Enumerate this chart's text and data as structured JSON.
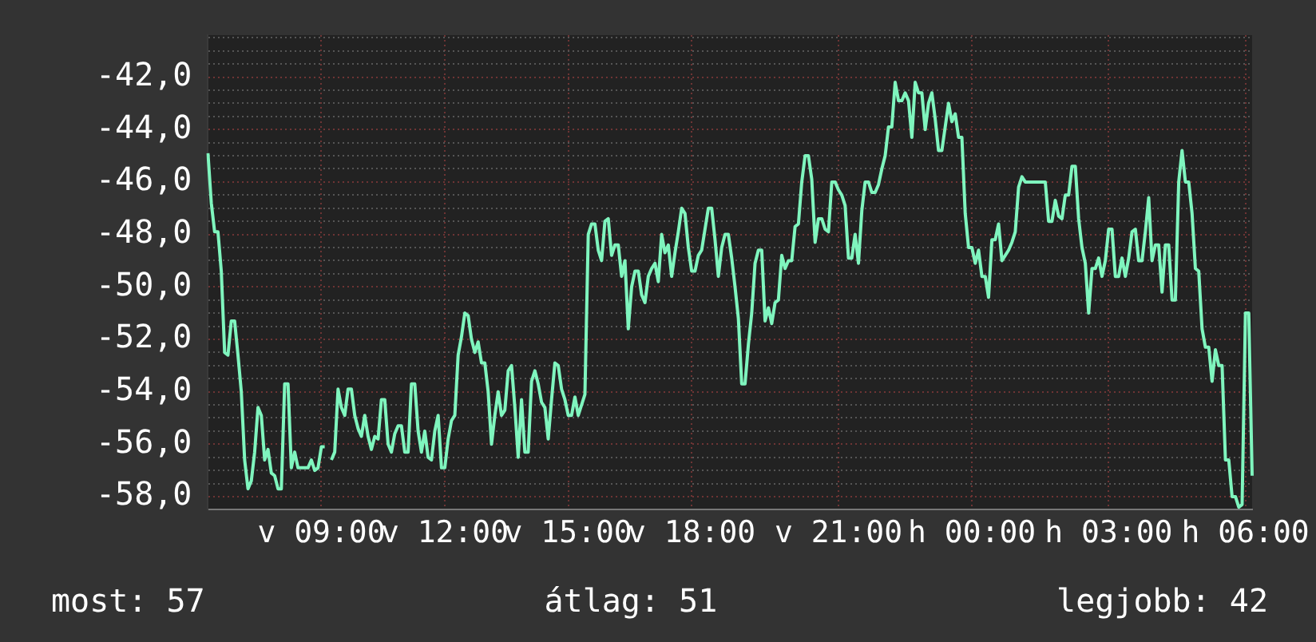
{
  "chart_data": {
    "type": "line",
    "color": "#7ff5be",
    "grid": true,
    "legend": false,
    "marker": "none",
    "ylim": [
      -58.5,
      -40.4
    ],
    "yticks": [
      {
        "value": -58.5,
        "label": null
      },
      {
        "value": -58,
        "label": "-58,0"
      },
      {
        "value": -57.5,
        "label": null
      },
      {
        "value": -57,
        "label": null
      },
      {
        "value": -56.5,
        "label": null
      },
      {
        "value": -56,
        "label": "-56,0"
      },
      {
        "value": -55.5,
        "label": null
      },
      {
        "value": -55,
        "label": null
      },
      {
        "value": -54.5,
        "label": null
      },
      {
        "value": -54,
        "label": "-54,0"
      },
      {
        "value": -53.5,
        "label": null
      },
      {
        "value": -53,
        "label": null
      },
      {
        "value": -52.5,
        "label": null
      },
      {
        "value": -52,
        "label": "-52,0"
      },
      {
        "value": -51.5,
        "label": null
      },
      {
        "value": -51,
        "label": null
      },
      {
        "value": -50.5,
        "label": null
      },
      {
        "value": -50,
        "label": "-50,0"
      },
      {
        "value": -49.5,
        "label": null
      },
      {
        "value": -49,
        "label": null
      },
      {
        "value": -48.5,
        "label": null
      },
      {
        "value": -48,
        "label": "-48,0"
      },
      {
        "value": -47.5,
        "label": null
      },
      {
        "value": -47,
        "label": null
      },
      {
        "value": -46.5,
        "label": null
      },
      {
        "value": -46,
        "label": "-46,0"
      },
      {
        "value": -45.5,
        "label": null
      },
      {
        "value": -45,
        "label": null
      },
      {
        "value": -44.5,
        "label": null
      },
      {
        "value": -44,
        "label": "-44,0"
      },
      {
        "value": -43.5,
        "label": null
      },
      {
        "value": -43,
        "label": null
      },
      {
        "value": -42.5,
        "label": null
      },
      {
        "value": -42,
        "label": "-42,0"
      },
      {
        "value": -41.5,
        "label": null
      },
      {
        "value": -41,
        "label": null
      },
      {
        "value": -40.5,
        "label": null
      }
    ],
    "categories": [
      null,
      null,
      null,
      null,
      null,
      null,
      null,
      null,
      null,
      null,
      null,
      null,
      null,
      null,
      null,
      null,
      null,
      null,
      null,
      null,
      null,
      null,
      null,
      null,
      null,
      null,
      null,
      null,
      null,
      null,
      null,
      null,
      null,
      null,
      "v 09:00",
      null,
      null,
      null,
      null,
      null,
      null,
      null,
      null,
      null,
      null,
      null,
      null,
      null,
      null,
      null,
      null,
      null,
      null,
      null,
      null,
      null,
      null,
      null,
      null,
      null,
      null,
      null,
      null,
      null,
      null,
      null,
      null,
      null,
      null,
      null,
      null,
      "v 12:00",
      null,
      null,
      null,
      null,
      null,
      null,
      null,
      null,
      null,
      null,
      null,
      null,
      null,
      null,
      null,
      null,
      null,
      null,
      null,
      null,
      null,
      null,
      null,
      null,
      null,
      null,
      null,
      null,
      null,
      null,
      null,
      null,
      null,
      null,
      null,
      null,
      "v 15:00",
      null,
      null,
      null,
      null,
      null,
      null,
      null,
      null,
      null,
      null,
      null,
      null,
      null,
      null,
      null,
      null,
      null,
      null,
      null,
      null,
      null,
      null,
      null,
      null,
      null,
      null,
      null,
      null,
      null,
      null,
      null,
      null,
      null,
      null,
      null,
      null,
      "v 18:00",
      null,
      null,
      null,
      null,
      null,
      null,
      null,
      null,
      null,
      null,
      null,
      null,
      null,
      null,
      null,
      null,
      null,
      null,
      null,
      null,
      null,
      null,
      null,
      null,
      null,
      null,
      null,
      null,
      null,
      null,
      null,
      null,
      null,
      null,
      null,
      null,
      null,
      null,
      null,
      null,
      null,
      null,
      null,
      "v 21:00",
      null,
      null,
      null,
      null,
      null,
      null,
      null,
      null,
      null,
      null,
      null,
      null,
      null,
      null,
      null,
      null,
      null,
      null,
      null,
      null,
      null,
      null,
      null,
      null,
      null,
      null,
      null,
      null,
      null,
      null,
      null,
      null,
      null,
      null,
      null,
      null,
      null,
      null,
      null,
      "h 00:00",
      null,
      null,
      null,
      null,
      null,
      null,
      null,
      null,
      null,
      null,
      null,
      null,
      null,
      null,
      null,
      null,
      null,
      null,
      null,
      null,
      null,
      null,
      null,
      null,
      null,
      null,
      null,
      null,
      null,
      null,
      null,
      null,
      null,
      null,
      null,
      null,
      null,
      null,
      null,
      null,
      "h 03:00",
      null,
      null,
      null,
      null,
      null,
      null,
      null,
      null,
      null,
      null,
      null,
      null,
      null,
      null,
      null,
      null,
      null,
      null,
      null,
      null,
      null,
      null,
      null,
      null,
      null,
      null,
      null,
      null,
      null,
      null,
      null,
      null,
      null,
      null,
      null,
      null,
      null,
      null,
      null,
      null,
      "h 06:00",
      null,
      null
    ],
    "values": [
      -44.9,
      -46.8,
      -47.9,
      -47.9,
      -49.4,
      -52.5,
      -52.6,
      -51.3,
      -51.3,
      -52.6,
      -54.0,
      -56.6,
      -57.7,
      -57.4,
      -56.3,
      -54.6,
      -54.9,
      -56.6,
      -56.2,
      -57.1,
      -57.2,
      -57.7,
      -57.7,
      -53.7,
      -53.7,
      -56.9,
      -56.3,
      -56.9,
      -56.9,
      -56.9,
      -56.9,
      -56.6,
      -57.0,
      -56.9,
      -56.1,
      -56.1,
      null,
      -56.6,
      -56.3,
      -53.9,
      -54.6,
      -54.9,
      -53.9,
      -53.9,
      -54.9,
      -55.4,
      -55.7,
      -54.9,
      -55.7,
      -56.2,
      -55.7,
      -55.8,
      -54.3,
      -54.3,
      -56.0,
      -56.3,
      -55.6,
      -55.3,
      -55.3,
      -56.3,
      -56.3,
      -53.7,
      -53.7,
      -55.5,
      -56.3,
      -55.5,
      -56.5,
      -56.6,
      -55.5,
      -54.9,
      -56.9,
      -56.9,
      -55.8,
      -55.1,
      -54.9,
      -52.6,
      -51.9,
      -51.0,
      -51.1,
      -52.0,
      -52.5,
      -52.1,
      -52.9,
      -52.9,
      -54.0,
      -56.0,
      -54.9,
      -54.0,
      -54.9,
      -54.7,
      -53.2,
      -53.0,
      -54.6,
      -56.5,
      -54.3,
      -56.3,
      -56.3,
      -53.6,
      -53.2,
      -53.7,
      -54.4,
      -54.6,
      -55.8,
      -54.3,
      -52.9,
      -53.0,
      -53.9,
      -54.3,
      -54.9,
      -54.9,
      -54.2,
      -54.9,
      -54.5,
      -54.1,
      -48.0,
      -47.6,
      -47.6,
      -48.6,
      -49.0,
      -47.5,
      -47.4,
      -48.8,
      -48.4,
      -48.4,
      -49.6,
      -49.0,
      -51.6,
      -50.0,
      -49.4,
      -49.4,
      -50.3,
      -50.6,
      -49.6,
      -49.3,
      -49.1,
      -49.8,
      -48.0,
      -48.7,
      -48.4,
      -49.6,
      -48.7,
      -47.9,
      -47.0,
      -47.2,
      -48.5,
      -49.4,
      -49.4,
      -48.8,
      -48.6,
      -47.8,
      -47.0,
      -47.0,
      -48.2,
      -49.6,
      -48.5,
      -48.0,
      -48.0,
      -48.9,
      -50.0,
      -51.2,
      -53.7,
      -53.7,
      -52.2,
      -51.0,
      -49.1,
      -48.6,
      -48.6,
      -51.3,
      -50.8,
      -51.4,
      -50.6,
      -50.5,
      -48.8,
      -49.3,
      -49.0,
      -49.0,
      -47.7,
      -47.6,
      -46.0,
      -45.0,
      -45.0,
      -45.9,
      -48.3,
      -47.4,
      -47.4,
      -47.8,
      -47.9,
      -46.0,
      -46.0,
      -46.3,
      -46.5,
      -46.9,
      -48.9,
      -48.9,
      -48.0,
      -49.1,
      -47.1,
      -46.0,
      -46.0,
      -46.4,
      -46.4,
      -46.1,
      -45.5,
      -45.0,
      -43.9,
      -43.9,
      -42.2,
      -42.9,
      -42.9,
      -42.6,
      -42.9,
      -44.3,
      -42.2,
      -42.6,
      -42.6,
      -44.0,
      -43.0,
      -42.6,
      -43.6,
      -44.8,
      -44.8,
      -43.9,
      -43.0,
      -43.7,
      -43.4,
      -44.3,
      -44.3,
      -47.2,
      -48.5,
      -48.5,
      -49.1,
      -48.6,
      -49.6,
      -49.6,
      -50.4,
      -48.2,
      -48.2,
      -47.6,
      -49.0,
      -48.8,
      -48.6,
      -48.3,
      -47.9,
      -46.2,
      -45.8,
      -46.0,
      -46.0,
      -46.0,
      -46.0,
      -46.0,
      -46.0,
      -46.0,
      -47.5,
      -47.5,
      -46.7,
      -47.3,
      -47.4,
      -46.5,
      -46.5,
      -45.4,
      -45.4,
      -47.4,
      -48.5,
      -49.1,
      -51.0,
      -49.3,
      -49.3,
      -48.9,
      -49.6,
      -49.0,
      -47.8,
      -47.8,
      -49.6,
      -49.6,
      -48.9,
      -49.6,
      -48.9,
      -47.9,
      -47.8,
      -49.0,
      -49.0,
      -47.9,
      -46.6,
      -49.0,
      -48.4,
      -48.4,
      -50.2,
      -48.4,
      -48.4,
      -50.5,
      -50.5,
      -46.0,
      -44.8,
      -46.0,
      -46.0,
      -47.2,
      -49.3,
      -49.4,
      -51.6,
      -52.3,
      -52.3,
      -53.6,
      -52.4,
      -53.0,
      -53.0,
      -56.6,
      -56.6,
      -58.0,
      -58.0,
      -58.4,
      -58.3,
      -51.0,
      -51.0,
      -57.2
    ],
    "annotations": [
      "most: 57",
      "átlag: 51",
      "legjobb: 42"
    ]
  }
}
